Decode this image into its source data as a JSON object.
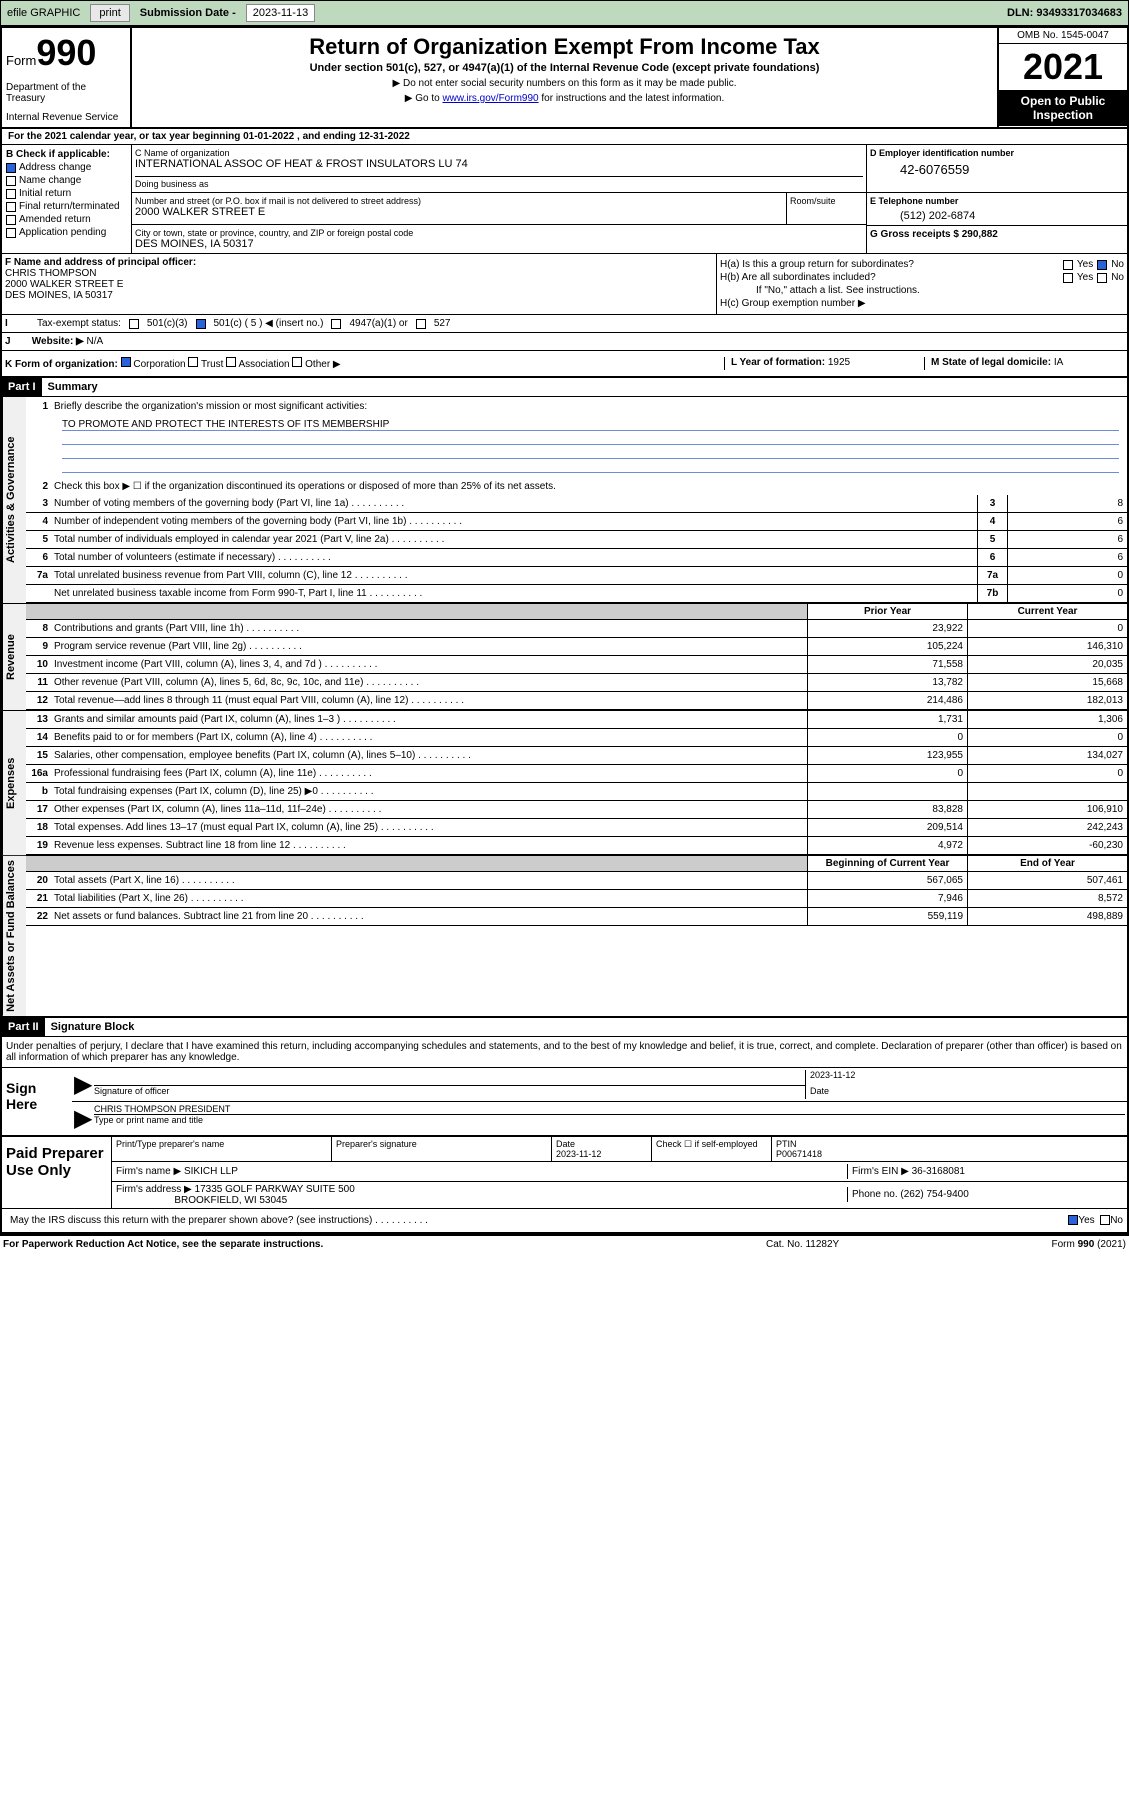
{
  "topbar": {
    "efile": "efile GRAPHIC",
    "print": "print",
    "subdate_label": "Submission Date - ",
    "subdate": "2023-11-13",
    "dln_label": "DLN: ",
    "dln": "93493317034683"
  },
  "header": {
    "form_label": "Form",
    "form_num": "990",
    "dept": "Department of the Treasury",
    "irs": "Internal Revenue Service",
    "title": "Return of Organization Exempt From Income Tax",
    "subtitle": "Under section 501(c), 527, or 4947(a)(1) of the Internal Revenue Code (except private foundations)",
    "note1": "▶ Do not enter social security numbers on this form as it may be made public.",
    "note2_pre": "▶ Go to ",
    "note2_link": "www.irs.gov/Form990",
    "note2_post": " for instructions and the latest information.",
    "omb": "OMB No. 1545-0047",
    "year": "2021",
    "open": "Open to Public Inspection"
  },
  "section_a": {
    "text": "For the 2021 calendar year, or tax year beginning 01-01-2022   , and ending 12-31-2022"
  },
  "section_b": {
    "label": "B Check if applicable:",
    "items": [
      "Address change",
      "Name change",
      "Initial return",
      "Final return/terminated",
      "Amended return",
      "Application pending"
    ],
    "checked_idx": 0
  },
  "section_c": {
    "name_label": "C Name of organization",
    "name": "INTERNATIONAL ASSOC OF HEAT & FROST INSULATORS LU 74",
    "dba_label": "Doing business as",
    "addr_label": "Number and street (or P.O. box if mail is not delivered to street address)",
    "room_label": "Room/suite",
    "addr": "2000 WALKER STREET E",
    "city_label": "City or town, state or province, country, and ZIP or foreign postal code",
    "city": "DES MOINES, IA  50317"
  },
  "section_d": {
    "label": "D Employer identification number",
    "ein": "42-6076559"
  },
  "section_e": {
    "label": "E Telephone number",
    "phone": "(512) 202-6874"
  },
  "section_g": {
    "label": "G Gross receipts $ ",
    "amount": "290,882"
  },
  "section_f": {
    "label": "F Name and address of principal officer:",
    "name": "CHRIS THOMPSON",
    "addr1": "2000 WALKER STREET E",
    "addr2": "DES MOINES, IA  50317"
  },
  "section_h": {
    "ha_label": "H(a) Is this a group return for subordinates?",
    "hb_label": "H(b) Are all subordinates included?",
    "hb_note": "If \"No,\" attach a list. See instructions.",
    "hc_label": "H(c) Group exemption number ▶",
    "yes": "Yes",
    "no": "No"
  },
  "section_i": {
    "label": "Tax-exempt status:",
    "opt1": "501(c)(3)",
    "opt2": "501(c) ( 5 ) ◀ (insert no.)",
    "opt3": "4947(a)(1) or",
    "opt4": "527"
  },
  "section_j": {
    "label": "Website: ▶ ",
    "val": "N/A"
  },
  "section_k": {
    "label": "K Form of organization:",
    "opts": [
      "Corporation",
      "Trust",
      "Association",
      "Other ▶"
    ],
    "l_label": "L Year of formation: ",
    "l_val": "1925",
    "m_label": "M State of legal domicile: ",
    "m_val": "IA"
  },
  "part1": {
    "hdr": "Part I",
    "title": "Summary",
    "line1_label": "Briefly describe the organization's mission or most significant activities:",
    "mission": "TO PROMOTE AND PROTECT THE INTERESTS OF ITS MEMBERSHIP",
    "line2_label": "Check this box ▶ ☐  if the organization discontinued its operations or disposed of more than 25% of its net assets.",
    "sides": [
      "Activities & Governance",
      "Revenue",
      "Expenses",
      "Net Assets or Fund Balances"
    ],
    "gov_lines": [
      {
        "n": "3",
        "d": "Number of voting members of the governing body (Part VI, line 1a)",
        "b": "3",
        "v": "8"
      },
      {
        "n": "4",
        "d": "Number of independent voting members of the governing body (Part VI, line 1b)",
        "b": "4",
        "v": "6"
      },
      {
        "n": "5",
        "d": "Total number of individuals employed in calendar year 2021 (Part V, line 2a)",
        "b": "5",
        "v": "6"
      },
      {
        "n": "6",
        "d": "Total number of volunteers (estimate if necessary)",
        "b": "6",
        "v": "6"
      },
      {
        "n": "7a",
        "d": "Total unrelated business revenue from Part VIII, column (C), line 12",
        "b": "7a",
        "v": "0"
      },
      {
        "n": "",
        "d": "Net unrelated business taxable income from Form 990-T, Part I, line 11",
        "b": "7b",
        "v": "0"
      }
    ],
    "col_prior": "Prior Year",
    "col_current": "Current Year",
    "col_beg": "Beginning of Current Year",
    "col_end": "End of Year",
    "rev_lines": [
      {
        "n": "8",
        "d": "Contributions and grants (Part VIII, line 1h)",
        "p": "23,922",
        "c": "0"
      },
      {
        "n": "9",
        "d": "Program service revenue (Part VIII, line 2g)",
        "p": "105,224",
        "c": "146,310"
      },
      {
        "n": "10",
        "d": "Investment income (Part VIII, column (A), lines 3, 4, and 7d )",
        "p": "71,558",
        "c": "20,035"
      },
      {
        "n": "11",
        "d": "Other revenue (Part VIII, column (A), lines 5, 6d, 8c, 9c, 10c, and 11e)",
        "p": "13,782",
        "c": "15,668"
      },
      {
        "n": "12",
        "d": "Total revenue—add lines 8 through 11 (must equal Part VIII, column (A), line 12)",
        "p": "214,486",
        "c": "182,013"
      }
    ],
    "exp_lines": [
      {
        "n": "13",
        "d": "Grants and similar amounts paid (Part IX, column (A), lines 1–3 )",
        "p": "1,731",
        "c": "1,306"
      },
      {
        "n": "14",
        "d": "Benefits paid to or for members (Part IX, column (A), line 4)",
        "p": "0",
        "c": "0"
      },
      {
        "n": "15",
        "d": "Salaries, other compensation, employee benefits (Part IX, column (A), lines 5–10)",
        "p": "123,955",
        "c": "134,027"
      },
      {
        "n": "16a",
        "d": "Professional fundraising fees (Part IX, column (A), line 11e)",
        "p": "0",
        "c": "0"
      },
      {
        "n": "b",
        "d": "Total fundraising expenses (Part IX, column (D), line 25) ▶0",
        "p": "",
        "c": "",
        "gray": true
      },
      {
        "n": "17",
        "d": "Other expenses (Part IX, column (A), lines 11a–11d, 11f–24e)",
        "p": "83,828",
        "c": "106,910"
      },
      {
        "n": "18",
        "d": "Total expenses. Add lines 13–17 (must equal Part IX, column (A), line 25)",
        "p": "209,514",
        "c": "242,243"
      },
      {
        "n": "19",
        "d": "Revenue less expenses. Subtract line 18 from line 12",
        "p": "4,972",
        "c": "-60,230"
      }
    ],
    "net_lines": [
      {
        "n": "20",
        "d": "Total assets (Part X, line 16)",
        "p": "567,065",
        "c": "507,461"
      },
      {
        "n": "21",
        "d": "Total liabilities (Part X, line 26)",
        "p": "7,946",
        "c": "8,572"
      },
      {
        "n": "22",
        "d": "Net assets or fund balances. Subtract line 21 from line 20",
        "p": "559,119",
        "c": "498,889"
      }
    ]
  },
  "part2": {
    "hdr": "Part II",
    "title": "Signature Block",
    "disclaimer": "Under penalties of perjury, I declare that I have examined this return, including accompanying schedules and statements, and to the best of my knowledge and belief, it is true, correct, and complete. Declaration of preparer (other than officer) is based on all information of which preparer has any knowledge.",
    "sign_here": "Sign Here",
    "sig_of_officer": "Signature of officer",
    "date_label": "Date",
    "sig_date": "2023-11-12",
    "officer_name": "CHRIS THOMPSON  PRESIDENT",
    "type_name": "Type or print name and title",
    "paid_prep": "Paid Preparer Use Only",
    "prep_name_label": "Print/Type preparer's name",
    "prep_sig_label": "Preparer's signature",
    "prep_date_label": "Date",
    "prep_date": "2023-11-12",
    "check_if": "Check ☐ if self-employed",
    "ptin_label": "PTIN",
    "ptin": "P00671418",
    "firm_name_label": "Firm's name    ▶ ",
    "firm_name": "SIKICH LLP",
    "firm_ein_label": "Firm's EIN ▶ ",
    "firm_ein": "36-3168081",
    "firm_addr_label": "Firm's address ▶ ",
    "firm_addr": "17335 GOLF PARKWAY SUITE 500",
    "firm_city": "BROOKFIELD, WI  53045",
    "phone_label": "Phone no. ",
    "phone": "(262) 754-9400",
    "may_irs": "May the IRS discuss this return with the preparer shown above? (see instructions)",
    "yes": "Yes",
    "no": "No"
  },
  "footer": {
    "left": "For Paperwork Reduction Act Notice, see the separate instructions.",
    "mid": "Cat. No. 11282Y",
    "right": "Form 990 (2021)"
  }
}
